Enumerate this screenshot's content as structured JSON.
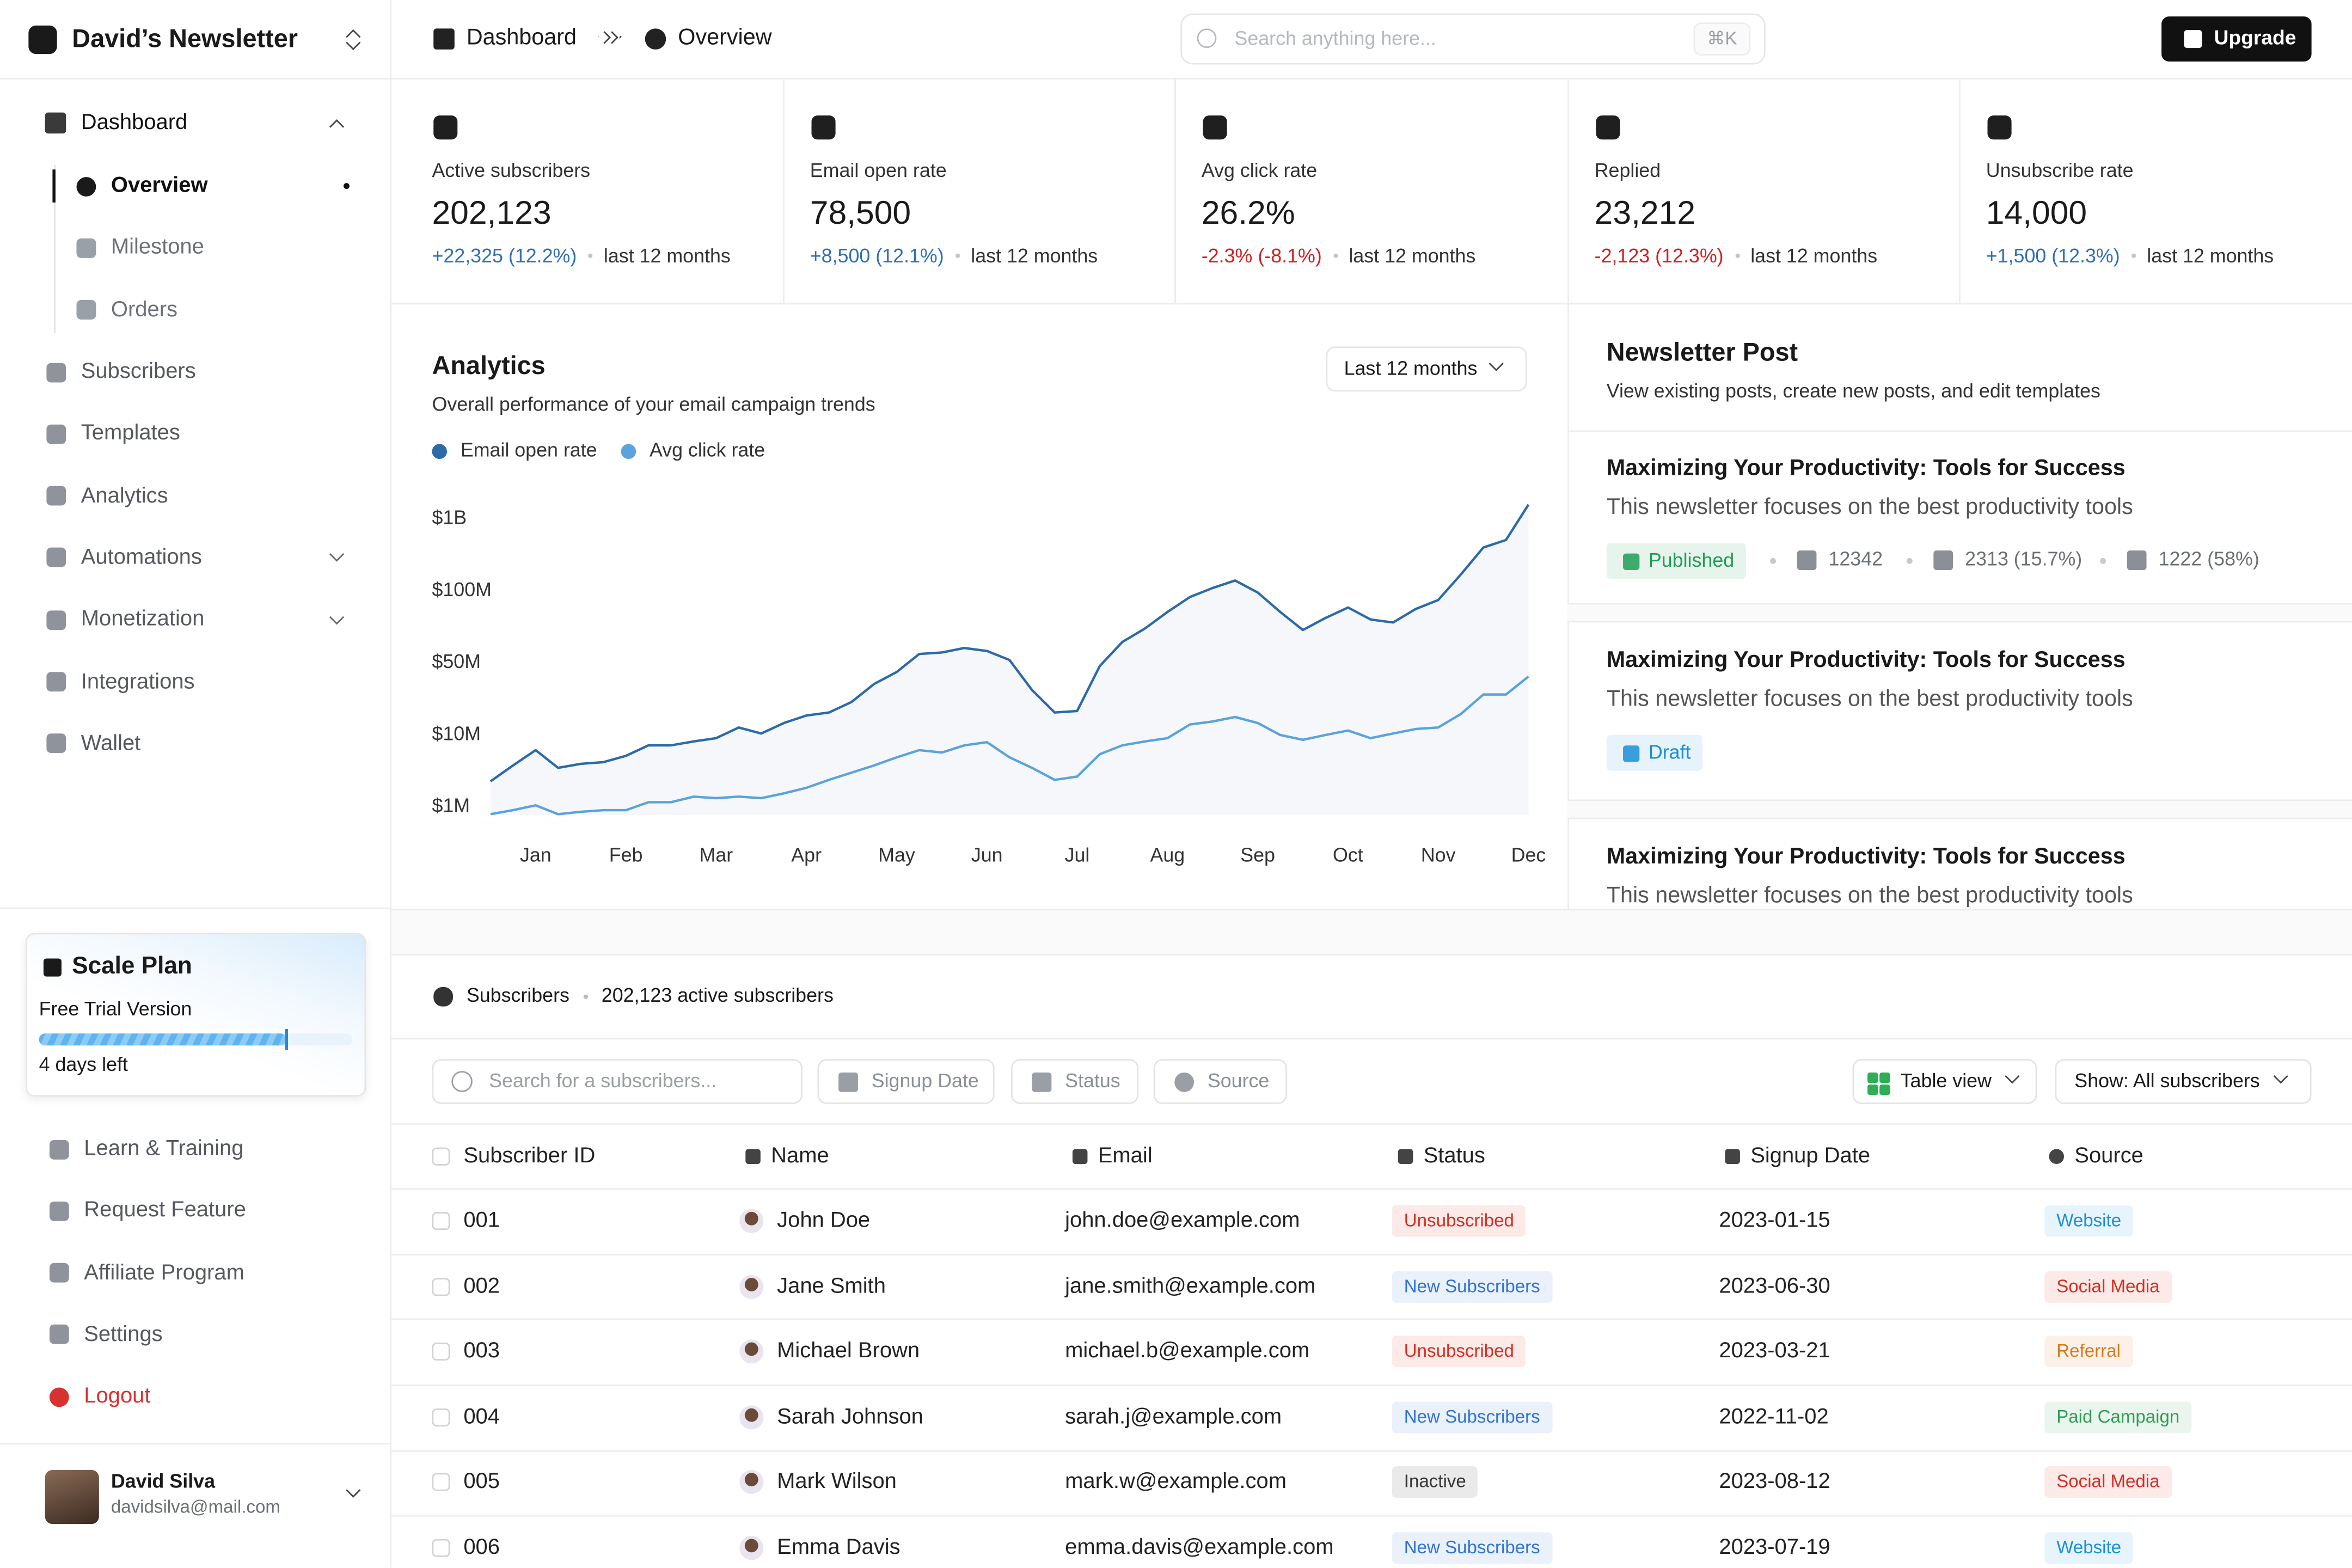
{
  "sidebar": {
    "workspace": "David’s Newsletter",
    "nav_main": {
      "label": "Dashboard",
      "children": [
        "Overview",
        "Milestone",
        "Orders"
      ]
    },
    "nav": [
      "Subscribers",
      "Templates",
      "Analytics",
      "Automations",
      "Monetization",
      "Integrations",
      "Wallet"
    ],
    "plan": {
      "title": "Scale Plan",
      "subtitle": "Free Trial Version",
      "remaining": "4 days left"
    },
    "footer_nav": [
      "Learn & Training",
      "Request Feature",
      "Affiliate Program",
      "Settings",
      "Logout"
    ],
    "user": {
      "name": "David Silva",
      "email": "davidsilva@mail.com"
    }
  },
  "header": {
    "breadcrumbs": [
      "Dashboard",
      "Overview"
    ],
    "search_placeholder": "Search anything here...",
    "shortcut": "⌘K",
    "upgrade": "Upgrade"
  },
  "stats": [
    {
      "label": "Active subscribers",
      "value": "202,123",
      "change": "+22,325 (12.2%)",
      "period": "last 12 months",
      "change_color": "#2f6fb5"
    },
    {
      "label": "Email open rate",
      "value": "78,500",
      "change": "+8,500 (12.1%)",
      "period": "last 12 months",
      "change_color": "#2f6fb5"
    },
    {
      "label": "Avg click rate",
      "value": "26.2%",
      "change": "-2.3% (-8.1%)",
      "period": "last 12 months",
      "change_color": "#d21f1f"
    },
    {
      "label": "Replied",
      "value": "23,212",
      "change": "-2,123 (12.3%)",
      "period": "last 12 months",
      "change_color": "#d21f1f"
    },
    {
      "label": "Unsubscribe rate",
      "value": "14,000",
      "change": "+1,500 (12.3%)",
      "period": "last 12 months",
      "change_color": "#2f6fb5"
    }
  ],
  "analytics": {
    "title": "Analytics",
    "subtitle": "Overall performance of your email campaign trends",
    "range": "Last 12 months",
    "chart_data": {
      "type": "line",
      "grid": false,
      "categories": [
        null,
        null,
        "Jan",
        null,
        null,
        null,
        "Feb",
        null,
        null,
        null,
        "Mar",
        null,
        null,
        null,
        "Apr",
        null,
        null,
        null,
        "May",
        null,
        null,
        null,
        "Jun",
        null,
        null,
        null,
        "Jul",
        null,
        null,
        null,
        "Aug",
        null,
        null,
        null,
        "Sep",
        null,
        null,
        null,
        "Oct",
        null,
        null,
        null,
        "Nov",
        null,
        null,
        null,
        "Dec"
      ],
      "series": [
        {
          "name": "Email open rate",
          "color": "#2c6aa8",
          "values": [
            4200000,
            6200000,
            8100000,
            5900000,
            6400000,
            6600000,
            7400000,
            8700000,
            8700000,
            9200000,
            9600000,
            14200000,
            10800000,
            16700000,
            20800000,
            22500000,
            28300000,
            38300000,
            45000000,
            56200000,
            57300000,
            60400000,
            58300000,
            52100000,
            35000000,
            22500000,
            23300000,
            48300000,
            64600000,
            74000000,
            85400000,
            95800000,
            137500000,
            231000000,
            99000000,
            85400000,
            72900000,
            81200000,
            88500000,
            80200000,
            78100000,
            87500000,
            93700000,
            306000000,
            644000000,
            737000000,
            1180000000
          ]
        },
        {
          "name": "Avg click rate",
          "color": "#5aa3dc",
          "values": [
            100000,
            600000,
            1200000,
            100000,
            400000,
            600000,
            600000,
            1600000,
            1600000,
            2300000,
            2100000,
            2300000,
            2100000,
            2700000,
            3400000,
            4400000,
            5300000,
            6200000,
            7200000,
            8100000,
            7800000,
            8700000,
            9100000,
            7200000,
            5900000,
            4400000,
            4800000,
            7600000,
            8700000,
            9200000,
            9600000,
            15800000,
            17500000,
            20000000,
            16700000,
            10000000,
            9400000,
            10000000,
            12500000,
            9600000,
            10800000,
            13300000,
            14200000,
            21700000,
            32500000,
            32500000,
            42500000
          ]
        }
      ],
      "ylim": [
        0,
        1200000000
      ],
      "yticks": [
        {
          "value": 1000000,
          "label": "$1M"
        },
        {
          "value": 10000000,
          "label": "$10M"
        },
        {
          "value": 50000000,
          "label": "$50M"
        },
        {
          "value": 100000000,
          "label": "$100M"
        },
        {
          "value": 1000000000,
          "label": "$1B"
        }
      ]
    }
  },
  "newsletter": {
    "title": "Newsletter Post",
    "subtitle": "View existing posts, create new posts, and edit templates",
    "posts": [
      {
        "title": "Maximizing Your Productivity: Tools for Success",
        "description": "This newsletter focuses on the best productivity tools",
        "status": "Published",
        "status_color": "#1f9d55",
        "stats": [
          "12342",
          "2313 (15.7%)",
          "1222 (58%)"
        ]
      },
      {
        "title": "Maximizing Your Productivity: Tools for Success",
        "description": "This newsletter focuses on the best productivity tools",
        "status": "Draft",
        "status_color": "#1a8fd6"
      },
      {
        "title": "Maximizing Your Productivity: Tools for Success",
        "description": "This newsletter focuses on the best productivity tools"
      }
    ]
  },
  "subscribers": {
    "title": "Subscribers",
    "summary": "202,123 active subscribers",
    "search_placeholder": "Search for a subscribers...",
    "filters": [
      "Signup Date",
      "Status",
      "Source"
    ],
    "view": "Table view",
    "show": "Show: All subscribers",
    "columns": [
      "Subscriber ID",
      "Name",
      "Email",
      "Status",
      "Signup Date",
      "Source"
    ],
    "rows": [
      [
        "001",
        "John Doe",
        "john.doe@example.com",
        {
          "label": "Unsubscribed",
          "color": "#d92d20"
        },
        "2023-01-15",
        {
          "label": "Website",
          "color": "#1a8fd6"
        }
      ],
      [
        "002",
        "Jane Smith",
        "jane.smith@example.com",
        {
          "label": "New Subscribers",
          "color": "#2f72d4"
        },
        "2023-06-30",
        {
          "label": "Social Media",
          "color": "#d92d20"
        }
      ],
      [
        "003",
        "Michael Brown",
        "michael.b@example.com",
        {
          "label": "Unsubscribed",
          "color": "#d92d20"
        },
        "2023-03-21",
        {
          "label": "Referral",
          "color": "#d9781b"
        }
      ],
      [
        "004",
        "Sarah Johnson",
        "sarah.j@example.com",
        {
          "label": "New Subscribers",
          "color": "#2f72d4"
        },
        "2022-11-02",
        {
          "label": "Paid Campaign",
          "color": "#2f9e55"
        }
      ],
      [
        "005",
        "Mark Wilson",
        "mark.w@example.com",
        {
          "label": "Inactive",
          "color": "#333333"
        },
        "2023-08-12",
        {
          "label": "Social Media",
          "color": "#d92d20"
        }
      ],
      [
        "006",
        "Emma Davis",
        "emma.davis@example.com",
        {
          "label": "New Subscribers",
          "color": "#2f72d4"
        },
        "2023-07-19",
        {
          "label": "Website",
          "color": "#1a8fd6"
        }
      ]
    ]
  }
}
